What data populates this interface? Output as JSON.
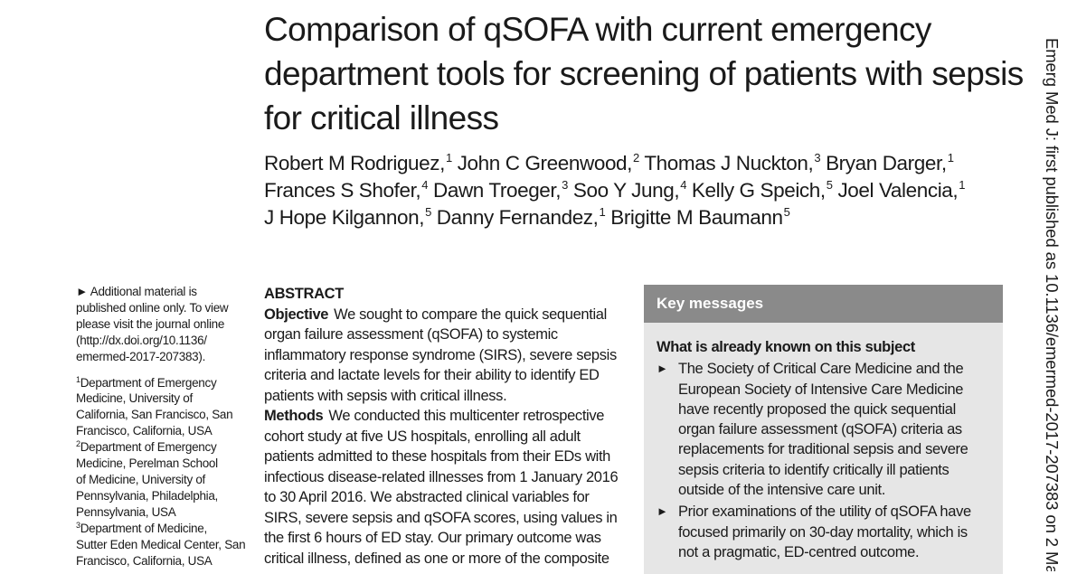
{
  "title_lines": [
    "Comparison of qSOFA with current emergency",
    "department tools for screening of patients with sepsis",
    "for critical illness"
  ],
  "authors": [
    [
      {
        "name": "Robert M Rodriguez,",
        "aff": "1"
      },
      {
        "name": "John C Greenwood,",
        "aff": "2"
      },
      {
        "name": "Thomas J Nuckton,",
        "aff": "3"
      },
      {
        "name": "Bryan Darger,",
        "aff": "1"
      }
    ],
    [
      {
        "name": "Frances S Shofer,",
        "aff": "4"
      },
      {
        "name": "Dawn Troeger,",
        "aff": "3"
      },
      {
        "name": "Soo Y Jung,",
        "aff": "4"
      },
      {
        "name": "Kelly G Speich,",
        "aff": "5"
      },
      {
        "name": "Joel Valencia,",
        "aff": "1"
      }
    ],
    [
      {
        "name": "J Hope Kilgannon,",
        "aff": "5"
      },
      {
        "name": "Danny Fernandez,",
        "aff": "1"
      },
      {
        "name": "Brigitte M Baumann",
        "aff": "5"
      }
    ]
  ],
  "sidebar": {
    "additional_note_lines": [
      "► Additional material is",
      "published online only. To view",
      "please visit the journal online",
      "(http://dx.doi.org/10.1136/",
      "emermed-2017-207383)."
    ],
    "affiliation_lines": [
      {
        "sup": "1",
        "text": "Department of Emergency"
      },
      {
        "sup": "",
        "text": "Medicine, University of"
      },
      {
        "sup": "",
        "text": "California, San Francisco, San"
      },
      {
        "sup": "",
        "text": "Francisco, California, USA"
      },
      {
        "sup": "2",
        "text": "Department of Emergency"
      },
      {
        "sup": "",
        "text": "Medicine, Perelman School"
      },
      {
        "sup": "",
        "text": "of Medicine, University of"
      },
      {
        "sup": "",
        "text": "Pennsylvania, Philadelphia,"
      },
      {
        "sup": "",
        "text": "Pennsylvania, USA"
      },
      {
        "sup": "3",
        "text": "Department of Medicine,"
      },
      {
        "sup": "",
        "text": "Sutter Eden Medical Center, San"
      },
      {
        "sup": "",
        "text": "Francisco, California, USA"
      }
    ]
  },
  "abstract": {
    "heading": "ABSTRACT",
    "objective_label": "Objective",
    "objective_lines": [
      "We sought to compare the quick sequential",
      "organ failure assessment (qSOFA) to systemic",
      "inflammatory response syndrome (SIRS), severe sepsis",
      "criteria and lactate levels for their ability to identify ED",
      "patients with sepsis with critical illness."
    ],
    "methods_label": "Methods",
    "methods_lines": [
      "We conducted this multicenter retrospective",
      "cohort study at five US hospitals, enrolling all adult",
      "patients admitted to these hospitals from their EDs with",
      "infectious disease-related illnesses from 1 January 2016",
      "to 30 April 2016. We abstracted clinical variables for",
      "SIRS, severe sepsis and qSOFA scores, using values in",
      "the first 6 hours of ED stay. Our primary outcome was",
      "critical illness, defined as one or more of the composite"
    ]
  },
  "key_messages": {
    "header": "Key messages",
    "subheading": "What is already known on this subject",
    "bullets": [
      [
        "The Society of Critical Care Medicine and the",
        "European Society of Intensive Care Medicine",
        "have recently proposed the quick sequential",
        "organ failure assessment (qSOFA) criteria as",
        "replacements for traditional sepsis and severe",
        "sepsis criteria to identify critically ill patients",
        "outside of the intensive care unit."
      ],
      [
        "Prior examinations of the utility of qSOFA have",
        "focused primarily on 30-day mortality, which is",
        "not a pragmatic, ED-centred outcome."
      ]
    ]
  },
  "side_citation": "Emerg Med J: first published as 10.1136/emermed-2017-207383 on 2 Ma"
}
